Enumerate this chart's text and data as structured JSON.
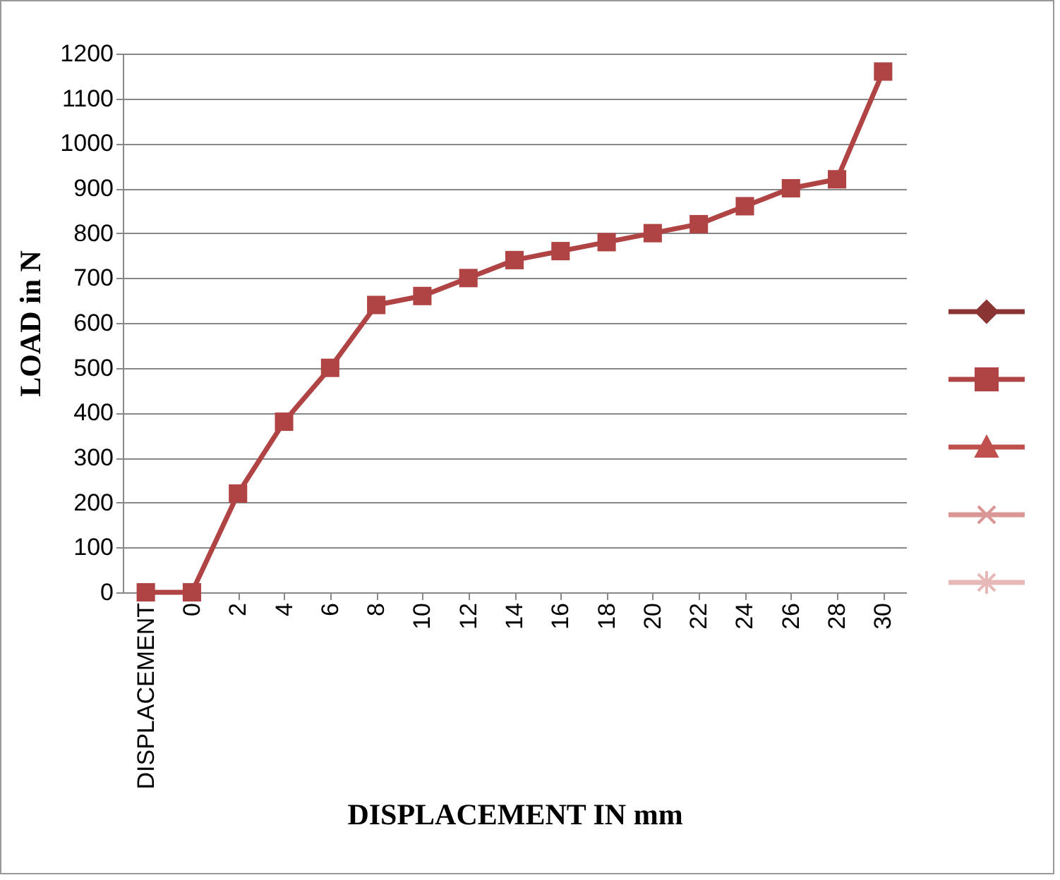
{
  "chart_data": {
    "type": "line",
    "xlabel": "DISPLACEMENT IN mm",
    "ylabel": "LOAD in N",
    "categories": [
      "DISPLACEMENT",
      "0",
      "2",
      "4",
      "6",
      "8",
      "10",
      "12",
      "14",
      "16",
      "18",
      "20",
      "22",
      "24",
      "26",
      "28",
      "30"
    ],
    "series": [
      {
        "color": "#8b3434",
        "marker": "diamond",
        "values": [
          null,
          null,
          null,
          null,
          null,
          null,
          null,
          null,
          null,
          null,
          null,
          null,
          null,
          null,
          null,
          null,
          null
        ]
      },
      {
        "color": "#b04444",
        "marker": "square",
        "values": [
          0,
          0,
          220,
          380,
          500,
          640,
          660,
          700,
          740,
          760,
          780,
          800,
          820,
          860,
          900,
          920,
          1160
        ]
      },
      {
        "color": "#c0504d",
        "marker": "triangle",
        "values": [
          null,
          null,
          null,
          null,
          null,
          null,
          null,
          null,
          null,
          null,
          null,
          null,
          null,
          null,
          null,
          null,
          null
        ]
      },
      {
        "color": "#d99694",
        "marker": "cross",
        "values": [
          null,
          null,
          null,
          null,
          null,
          null,
          null,
          null,
          null,
          null,
          null,
          null,
          null,
          null,
          null,
          null,
          null
        ]
      },
      {
        "color": "#e6b9b8",
        "marker": "star",
        "values": [
          null,
          null,
          null,
          null,
          null,
          null,
          null,
          null,
          null,
          null,
          null,
          null,
          null,
          null,
          null,
          null,
          null
        ]
      }
    ],
    "ylim": [
      0,
      1200
    ],
    "yticks": [
      0,
      100,
      200,
      300,
      400,
      500,
      600,
      700,
      800,
      900,
      1000,
      1100,
      1200
    ],
    "grid": "y"
  }
}
